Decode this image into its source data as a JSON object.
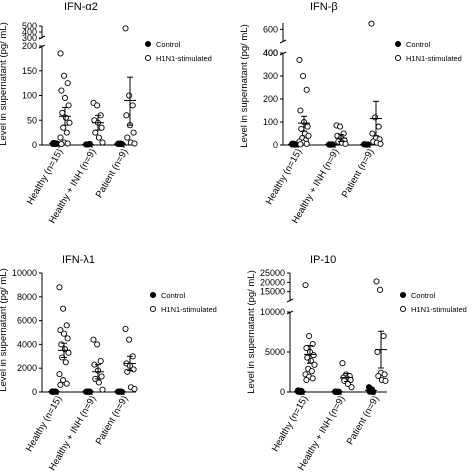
{
  "chart_data": [
    {
      "type": "scatter",
      "title": "IFN-α2",
      "ylabel": "Level in supernatant (pg/ mL)",
      "categories": [
        "Healthy (n=15)",
        "Healthy + INH (n=9)",
        "Patient (n=9)"
      ],
      "broken_axis": true,
      "lower_ylim": [
        0,
        200
      ],
      "lower_ticks": [
        "0",
        "50",
        "100",
        "150",
        "200"
      ],
      "upper_ylim": [
        300,
        500
      ],
      "upper_ticks": [
        "300",
        "400",
        "500"
      ],
      "legend": [
        "Control",
        "H1N1-stimulated"
      ],
      "legend_position": "right",
      "series": [
        {
          "name": "Control",
          "marker": "filled-circle",
          "points": [
            [
              [
                2,
                3,
                3,
                4,
                2,
                3,
                4,
                2,
                3,
                4,
                2,
                3,
                3,
                2,
                3
              ],
              3
            ],
            [
              [
                1,
                1,
                2,
                1,
                1,
                2,
                1,
                1,
                2
              ],
              1
            ],
            [
              [
                2,
                2,
                2,
                3,
                2,
                2,
                2,
                3,
                2
              ],
              2
            ]
          ]
        },
        {
          "name": "H1N1-stimulated",
          "marker": "open-circle",
          "points": [
            [
              [
                185,
                140,
                125,
                110,
                95,
                80,
                65,
                55,
                45,
                35,
                25,
                15,
                5,
                3,
                2
              ],
              58,
              40,
              76
            ],
            [
              [
                85,
                80,
                60,
                50,
                45,
                35,
                25,
                15,
                5
              ],
              45,
              30,
              60
            ],
            [
              [
                460,
                100,
                80,
                60,
                40,
                25,
                15,
                5,
                3
              ],
              90,
              40,
              137
            ]
          ]
        }
      ]
    },
    {
      "type": "scatter",
      "title": "IFN-β",
      "ylabel": "Level in supernatant (pg/ mL)",
      "categories": [
        "Healthy (n=15)",
        "Healthy + INH (n=9)",
        "Patient (n=9)"
      ],
      "broken_axis": true,
      "lower_ylim": [
        0,
        400
      ],
      "lower_ticks": [
        "0",
        "100",
        "200",
        "300",
        "400"
      ],
      "upper_ylim": [
        400,
        700
      ],
      "upper_ticks": [
        "400",
        "600"
      ],
      "legend": [
        "Control",
        "H1N1-stimulated"
      ],
      "legend_position": "right",
      "series": [
        {
          "name": "Control",
          "marker": "filled-circle",
          "points": [
            [
              [
                5,
                3,
                2,
                4,
                2,
                3,
                5,
                2,
                3,
                4,
                2,
                3,
                5,
                2,
                3
              ],
              3
            ],
            [
              [
                2,
                2,
                3,
                2,
                1,
                2,
                3,
                2,
                2
              ],
              2
            ],
            [
              [
                3,
                2,
                2,
                3,
                2,
                2,
                3,
                2,
                2
              ],
              2
            ]
          ]
        },
        {
          "name": "H1N1-stimulated",
          "marker": "open-circle",
          "points": [
            [
              [
                370,
                300,
                240,
                150,
                100,
                80,
                70,
                50,
                40,
                30,
                20,
                15,
                10,
                5,
                3
              ],
              95,
              60,
              125
            ],
            [
              [
                85,
                80,
                50,
                40,
                30,
                20,
                15,
                10,
                5
              ],
              30,
              15,
              45
            ],
            [
              [
                690,
                120,
                80,
                50,
                30,
                25,
                15,
                10,
                5
              ],
              115,
              40,
              190
            ]
          ]
        }
      ]
    },
    {
      "type": "scatter",
      "title": "IFN-λ1",
      "ylabel": "Level in supernatant (pg/ mL)",
      "categories": [
        "Healthy (n=15)",
        "Healthy + INH (n=9)",
        "Patient (n=9)"
      ],
      "broken_axis": false,
      "ylim": [
        0,
        10000
      ],
      "ticks": [
        "0",
        "2000",
        "4000",
        "6000",
        "8000",
        "10000"
      ],
      "legend": [
        "Control",
        "H1N1-stimulated"
      ],
      "legend_position": "right",
      "series": [
        {
          "name": "Control",
          "marker": "filled-circle",
          "points": [
            [
              [
                30,
                25,
                40,
                20,
                35,
                30,
                25,
                40,
                20,
                30,
                35,
                25,
                30,
                20,
                35
              ],
              30
            ],
            [
              [
                20,
                25,
                15,
                30,
                20,
                25,
                15,
                20,
                25
              ],
              20
            ],
            [
              [
                25,
                30,
                20,
                25,
                30,
                20,
                25,
                30,
                20
              ],
              25
            ]
          ]
        },
        {
          "name": "H1N1-stimulated",
          "marker": "open-circle",
          "points": [
            [
              [
                8800,
                7000,
                5600,
                5200,
                4900,
                4500,
                4000,
                3600,
                3300,
                2900,
                2500,
                1500,
                1000,
                700,
                600
              ],
              3500,
              2900,
              4100
            ],
            [
              [
                4400,
                4000,
                2600,
                2300,
                1800,
                1300,
                1100,
                800,
                200
              ],
              1700,
              1100,
              2300
            ],
            [
              [
                5300,
                4400,
                3000,
                2400,
                2200,
                1900,
                1700,
                400,
                250
              ],
              2400,
              1800,
              3000
            ]
          ]
        }
      ]
    },
    {
      "type": "scatter",
      "title": "IP-10",
      "ylabel": "Level in supernatant (pg/ mL)",
      "categories": [
        "Healthy (n=15)",
        "Healthy + INH (n=9)",
        "Patient (n=9)"
      ],
      "broken_axis": true,
      "lower_ylim": [
        0,
        10000
      ],
      "lower_ticks": [
        "0",
        "5000",
        "10000"
      ],
      "upper_ylim": [
        10000,
        25000
      ],
      "upper_ticks": [
        "15000",
        "20000",
        "25000"
      ],
      "legend": [
        "Control",
        "H1N1-stimulated"
      ],
      "legend_position": "right",
      "series": [
        {
          "name": "Control",
          "marker": "filled-circle",
          "points": [
            [
              [
                200,
                150,
                100,
                80,
                60,
                50,
                40,
                30,
                20,
                15,
                10,
                50,
                100,
                150,
                200
              ],
              80
            ],
            [
              [
                50,
                40,
                30,
                20,
                15,
                10,
                5,
                20,
                30
              ],
              25
            ],
            [
              [
                600,
                400,
                300,
                200,
                100,
                50,
                30,
                20,
                10
              ],
              200
            ]
          ]
        },
        {
          "name": "H1N1-stimulated",
          "marker": "open-circle",
          "points": [
            [
              [
                18500,
                7000,
                6000,
                5500,
                5000,
                4600,
                4300,
                3900,
                3400,
                2900,
                2600,
                2200,
                1900,
                1700,
                1500
              ],
              4700,
              3600,
              5800
            ],
            [
              [
                3600,
                2200,
                2000,
                1800,
                1700,
                1500,
                1400,
                1000,
                600
              ],
              1800,
              1300,
              2300
            ],
            [
              [
                20500,
                16000,
                7000,
                5000,
                2400,
                2200,
                2000,
                1500,
                1400
              ],
              5300,
              3000,
              7600
            ]
          ]
        }
      ]
    }
  ]
}
